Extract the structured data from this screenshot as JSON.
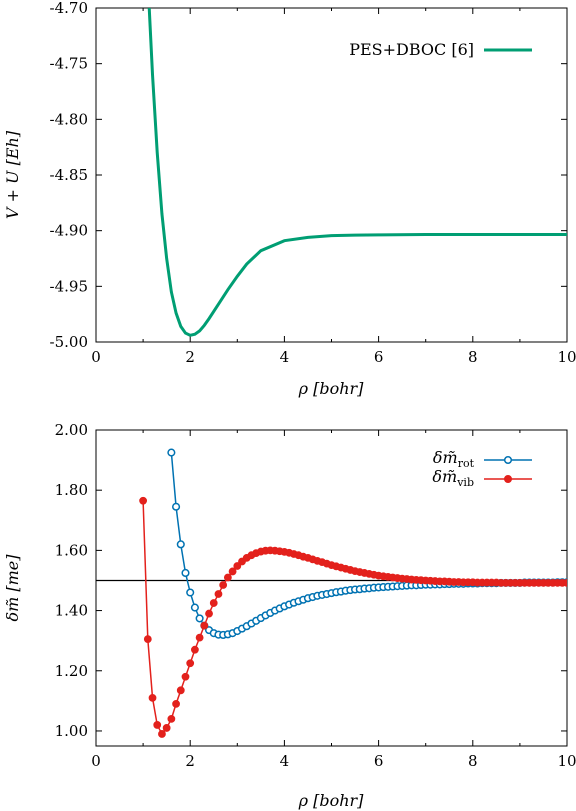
{
  "chart_data": [
    {
      "type": "line",
      "xlabel": "ρ [bohr]",
      "ylabel": "V + U [Eh]",
      "xlim": [
        0,
        10
      ],
      "ylim": [
        -5.0,
        -4.7
      ],
      "xticks": [
        "0",
        "2",
        "4",
        "6",
        "8",
        "10"
      ],
      "yticks": [
        "-4.70",
        "-4.75",
        "-4.80",
        "-4.85",
        "-4.90",
        "-4.95",
        "-5.00"
      ],
      "grid": false,
      "legend_position": "top-right",
      "series": [
        {
          "name": "PES+DBOC [6]",
          "color": "#009e73",
          "x": [
            1.13,
            1.2,
            1.3,
            1.4,
            1.5,
            1.6,
            1.7,
            1.8,
            1.9,
            2.0,
            2.1,
            2.2,
            2.3,
            2.4,
            2.6,
            2.8,
            3.0,
            3.2,
            3.5,
            4.0,
            4.5,
            5.0,
            5.5,
            6.0,
            7.0,
            8.0,
            9.0,
            10.0
          ],
          "y": [
            -4.7,
            -4.76,
            -4.83,
            -4.885,
            -4.925,
            -4.955,
            -4.974,
            -4.986,
            -4.992,
            -4.994,
            -4.993,
            -4.99,
            -4.985,
            -4.979,
            -4.966,
            -4.953,
            -4.941,
            -4.93,
            -4.918,
            -4.909,
            -4.906,
            -4.9045,
            -4.904,
            -4.9038,
            -4.9035,
            -4.9035,
            -4.9035,
            -4.9035
          ]
        }
      ]
    },
    {
      "type": "line",
      "xlabel": "ρ [bohr]",
      "ylabel": "δm̃ [me]",
      "xlim": [
        0,
        10
      ],
      "ylim": [
        0.95,
        2.0
      ],
      "xticks": [
        "0",
        "2",
        "4",
        "6",
        "8",
        "10"
      ],
      "yticks": [
        "2.00",
        "1.80",
        "1.60",
        "1.40",
        "1.20",
        "1.00"
      ],
      "grid": false,
      "legend_position": "top-right",
      "reference_line": 1.5,
      "series": [
        {
          "name": "δm̃rot",
          "name_base": "δm̃",
          "name_sub": "rot",
          "color": "#0072b2",
          "marker": "open-circle",
          "x": [
            1.6,
            1.7,
            1.8,
            1.9,
            2.0,
            2.1,
            2.2,
            2.3,
            2.4,
            2.5,
            2.6,
            2.7,
            2.8,
            2.9,
            3.0,
            3.1,
            3.2,
            3.3,
            3.4,
            3.5,
            3.6,
            3.7,
            3.8,
            3.9,
            4.0,
            4.1,
            4.2,
            4.3,
            4.4,
            4.5,
            4.6,
            4.7,
            4.8,
            4.9,
            5.0,
            5.1,
            5.2,
            5.3,
            5.4,
            5.5,
            5.6,
            5.7,
            5.8,
            5.9,
            6.0,
            6.1,
            6.2,
            6.3,
            6.4,
            6.5,
            6.6,
            6.7,
            6.8,
            6.9,
            7.0,
            7.1,
            7.2,
            7.3,
            7.4,
            7.5,
            7.6,
            7.7,
            7.8,
            7.9,
            8.0,
            8.1,
            8.2,
            8.3,
            8.4,
            8.5,
            8.6,
            8.7,
            8.8,
            8.9,
            9.0,
            9.1,
            9.2,
            9.3,
            9.4,
            9.5,
            9.6,
            9.7,
            9.8,
            9.9,
            10.0
          ],
          "y": [
            1.925,
            1.745,
            1.62,
            1.525,
            1.46,
            1.41,
            1.374,
            1.35,
            1.335,
            1.325,
            1.32,
            1.319,
            1.321,
            1.325,
            1.332,
            1.34,
            1.348,
            1.357,
            1.366,
            1.375,
            1.384,
            1.392,
            1.4,
            1.407,
            1.414,
            1.42,
            1.426,
            1.431,
            1.436,
            1.441,
            1.445,
            1.449,
            1.452,
            1.455,
            1.458,
            1.461,
            1.463,
            1.466,
            1.468,
            1.47,
            1.471,
            1.473,
            1.474,
            1.476,
            1.477,
            1.478,
            1.479,
            1.48,
            1.481,
            1.482,
            1.483,
            1.484,
            1.484,
            1.485,
            1.486,
            1.486,
            1.487,
            1.487,
            1.488,
            1.488,
            1.489,
            1.489,
            1.489,
            1.49,
            1.49,
            1.49,
            1.491,
            1.491,
            1.491,
            1.491,
            1.492,
            1.492,
            1.492,
            1.492,
            1.492,
            1.493,
            1.493,
            1.493,
            1.493,
            1.493,
            1.493,
            1.493,
            1.494,
            1.494,
            1.494
          ]
        },
        {
          "name": "δm̃vib",
          "name_base": "δm̃",
          "name_sub": "vib",
          "color": "#e3211c",
          "marker": "filled-circle",
          "x": [
            1.0,
            1.1,
            1.2,
            1.3,
            1.4,
            1.5,
            1.6,
            1.7,
            1.8,
            1.9,
            2.0,
            2.1,
            2.2,
            2.3,
            2.4,
            2.5,
            2.6,
            2.7,
            2.8,
            2.9,
            3.0,
            3.1,
            3.2,
            3.3,
            3.4,
            3.5,
            3.6,
            3.7,
            3.8,
            3.9,
            4.0,
            4.1,
            4.2,
            4.3,
            4.4,
            4.5,
            4.6,
            4.7,
            4.8,
            4.9,
            5.0,
            5.1,
            5.2,
            5.3,
            5.4,
            5.5,
            5.6,
            5.7,
            5.8,
            5.9,
            6.0,
            6.1,
            6.2,
            6.3,
            6.4,
            6.5,
            6.6,
            6.7,
            6.8,
            6.9,
            7.0,
            7.1,
            7.2,
            7.3,
            7.4,
            7.5,
            7.6,
            7.7,
            7.8,
            7.9,
            8.0,
            8.1,
            8.2,
            8.3,
            8.4,
            8.5,
            8.6,
            8.7,
            8.8,
            8.9,
            9.0,
            9.1,
            9.2,
            9.3,
            9.4,
            9.5,
            9.6,
            9.7,
            9.8,
            9.9,
            10.0
          ],
          "y": [
            1.765,
            1.305,
            1.11,
            1.02,
            0.99,
            1.01,
            1.04,
            1.09,
            1.135,
            1.18,
            1.225,
            1.27,
            1.31,
            1.35,
            1.39,
            1.425,
            1.455,
            1.485,
            1.51,
            1.53,
            1.548,
            1.563,
            1.575,
            1.584,
            1.591,
            1.596,
            1.599,
            1.6,
            1.599,
            1.597,
            1.595,
            1.592,
            1.588,
            1.584,
            1.579,
            1.575,
            1.57,
            1.565,
            1.561,
            1.556,
            1.551,
            1.547,
            1.543,
            1.539,
            1.535,
            1.531,
            1.528,
            1.525,
            1.522,
            1.519,
            1.516,
            1.514,
            1.512,
            1.51,
            1.508,
            1.506,
            1.505,
            1.503,
            1.502,
            1.501,
            1.5,
            1.499,
            1.498,
            1.497,
            1.497,
            1.496,
            1.495,
            1.495,
            1.494,
            1.494,
            1.494,
            1.493,
            1.493,
            1.493,
            1.493,
            1.493,
            1.492,
            1.492,
            1.492,
            1.492,
            1.492,
            1.492,
            1.492,
            1.492,
            1.492,
            1.492,
            1.492,
            1.492,
            1.492,
            1.492,
            1.492
          ]
        }
      ]
    }
  ]
}
